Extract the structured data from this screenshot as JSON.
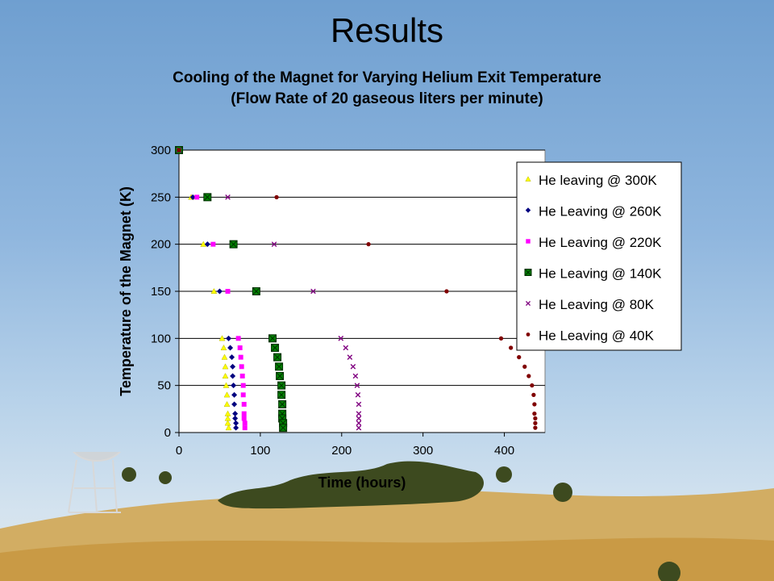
{
  "slide": {
    "title": "Results"
  },
  "chart_data": {
    "type": "scatter",
    "title": "Cooling of the Magnet for Varying Helium Exit Temperature",
    "subtitle": "(Flow Rate of 20 gaseous liters per minute)",
    "xlabel": "Time (hours)",
    "ylabel": "Temperature of the Magnet (K)",
    "xlim": [
      0,
      450
    ],
    "ylim": [
      0,
      300
    ],
    "xticks": [
      0,
      100,
      200,
      300,
      400
    ],
    "yticks": [
      0,
      50,
      100,
      150,
      200,
      250,
      300
    ],
    "grid": "horizontal",
    "legend": "top-right",
    "series": [
      {
        "name": "He leaving @ 300K",
        "color": "#ffff00",
        "marker": "triangle",
        "points": [
          [
            0,
            300
          ],
          [
            15,
            250
          ],
          [
            30,
            200
          ],
          [
            43,
            150
          ],
          [
            53,
            100
          ],
          [
            55,
            90
          ],
          [
            56,
            80
          ],
          [
            57,
            70
          ],
          [
            57,
            60
          ],
          [
            58,
            50
          ],
          [
            59,
            40
          ],
          [
            59,
            30
          ],
          [
            60,
            20
          ],
          [
            60,
            15
          ],
          [
            60,
            10
          ],
          [
            61,
            5
          ]
        ]
      },
      {
        "name": "He Leaving @ 260K",
        "color": "#000080",
        "marker": "diamond",
        "points": [
          [
            0,
            300
          ],
          [
            17,
            250
          ],
          [
            35,
            200
          ],
          [
            50,
            150
          ],
          [
            61,
            100
          ],
          [
            63,
            90
          ],
          [
            65,
            80
          ],
          [
            66,
            70
          ],
          [
            66,
            60
          ],
          [
            67,
            50
          ],
          [
            68,
            40
          ],
          [
            68,
            30
          ],
          [
            69,
            20
          ],
          [
            69,
            15
          ],
          [
            70,
            10
          ],
          [
            70,
            5
          ]
        ]
      },
      {
        "name": "He Leaving @ 220K",
        "color": "#ff00ff",
        "marker": "square",
        "points": [
          [
            0,
            300
          ],
          [
            22,
            250
          ],
          [
            42,
            200
          ],
          [
            60,
            150
          ],
          [
            73,
            100
          ],
          [
            75,
            90
          ],
          [
            76,
            80
          ],
          [
            77,
            70
          ],
          [
            78,
            60
          ],
          [
            79,
            50
          ],
          [
            79,
            40
          ],
          [
            80,
            30
          ],
          [
            80,
            20
          ],
          [
            80,
            15
          ],
          [
            81,
            10
          ],
          [
            81,
            5
          ]
        ]
      },
      {
        "name": "He Leaving @ 140K",
        "color": "#008000",
        "marker": "xbox",
        "points": [
          [
            0,
            300
          ],
          [
            35,
            250
          ],
          [
            67,
            200
          ],
          [
            95,
            150
          ],
          [
            115,
            100
          ],
          [
            118,
            90
          ],
          [
            121,
            80
          ],
          [
            123,
            70
          ],
          [
            124,
            60
          ],
          [
            126,
            50
          ],
          [
            126,
            40
          ],
          [
            127,
            30
          ],
          [
            127,
            20
          ],
          [
            127,
            15
          ],
          [
            128,
            10
          ],
          [
            128,
            5
          ]
        ]
      },
      {
        "name": "He Leaving @ 80K",
        "color": "#800080",
        "marker": "x",
        "points": [
          [
            0,
            300
          ],
          [
            60,
            250
          ],
          [
            117,
            200
          ],
          [
            165,
            150
          ],
          [
            199,
            100
          ],
          [
            205,
            90
          ],
          [
            210,
            80
          ],
          [
            214,
            70
          ],
          [
            217,
            60
          ],
          [
            219,
            50
          ],
          [
            220,
            40
          ],
          [
            221,
            30
          ],
          [
            221,
            20
          ],
          [
            221,
            15
          ],
          [
            221,
            10
          ],
          [
            221,
            5
          ]
        ]
      },
      {
        "name": "He Leaving @ 40K",
        "color": "#800000",
        "marker": "circle",
        "points": [
          [
            0,
            300
          ],
          [
            120,
            250
          ],
          [
            233,
            200
          ],
          [
            329,
            150
          ],
          [
            396,
            100
          ],
          [
            408,
            90
          ],
          [
            418,
            80
          ],
          [
            425,
            70
          ],
          [
            430,
            60
          ],
          [
            434,
            50
          ],
          [
            436,
            40
          ],
          [
            437,
            30
          ],
          [
            437,
            20
          ],
          [
            438,
            15
          ],
          [
            438,
            10
          ],
          [
            438,
            5
          ]
        ]
      }
    ]
  }
}
